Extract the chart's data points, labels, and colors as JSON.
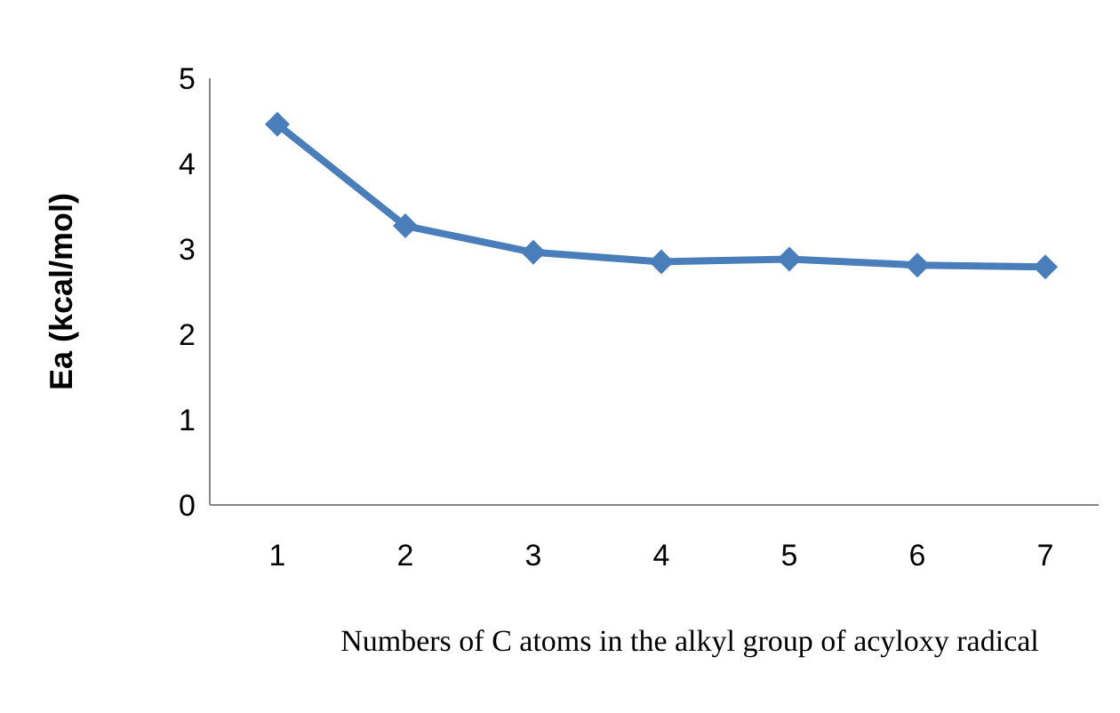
{
  "chart_data": {
    "type": "line",
    "xlabel": "Numbers of C atoms in the alkyl group of acyloxy radical",
    "ylabel": "Ea (kcal/mol)",
    "categories": [
      "1",
      "2",
      "3",
      "4",
      "5",
      "6",
      "7"
    ],
    "series": [
      {
        "color": "#4a7ebb",
        "values": [
          4.46,
          3.27,
          2.96,
          2.85,
          2.88,
          2.81,
          2.79
        ]
      }
    ],
    "ylim": [
      0,
      5
    ],
    "yticks": [
      0,
      1,
      2,
      3,
      4,
      5
    ],
    "marker": "diamond",
    "line_style": "solid"
  }
}
